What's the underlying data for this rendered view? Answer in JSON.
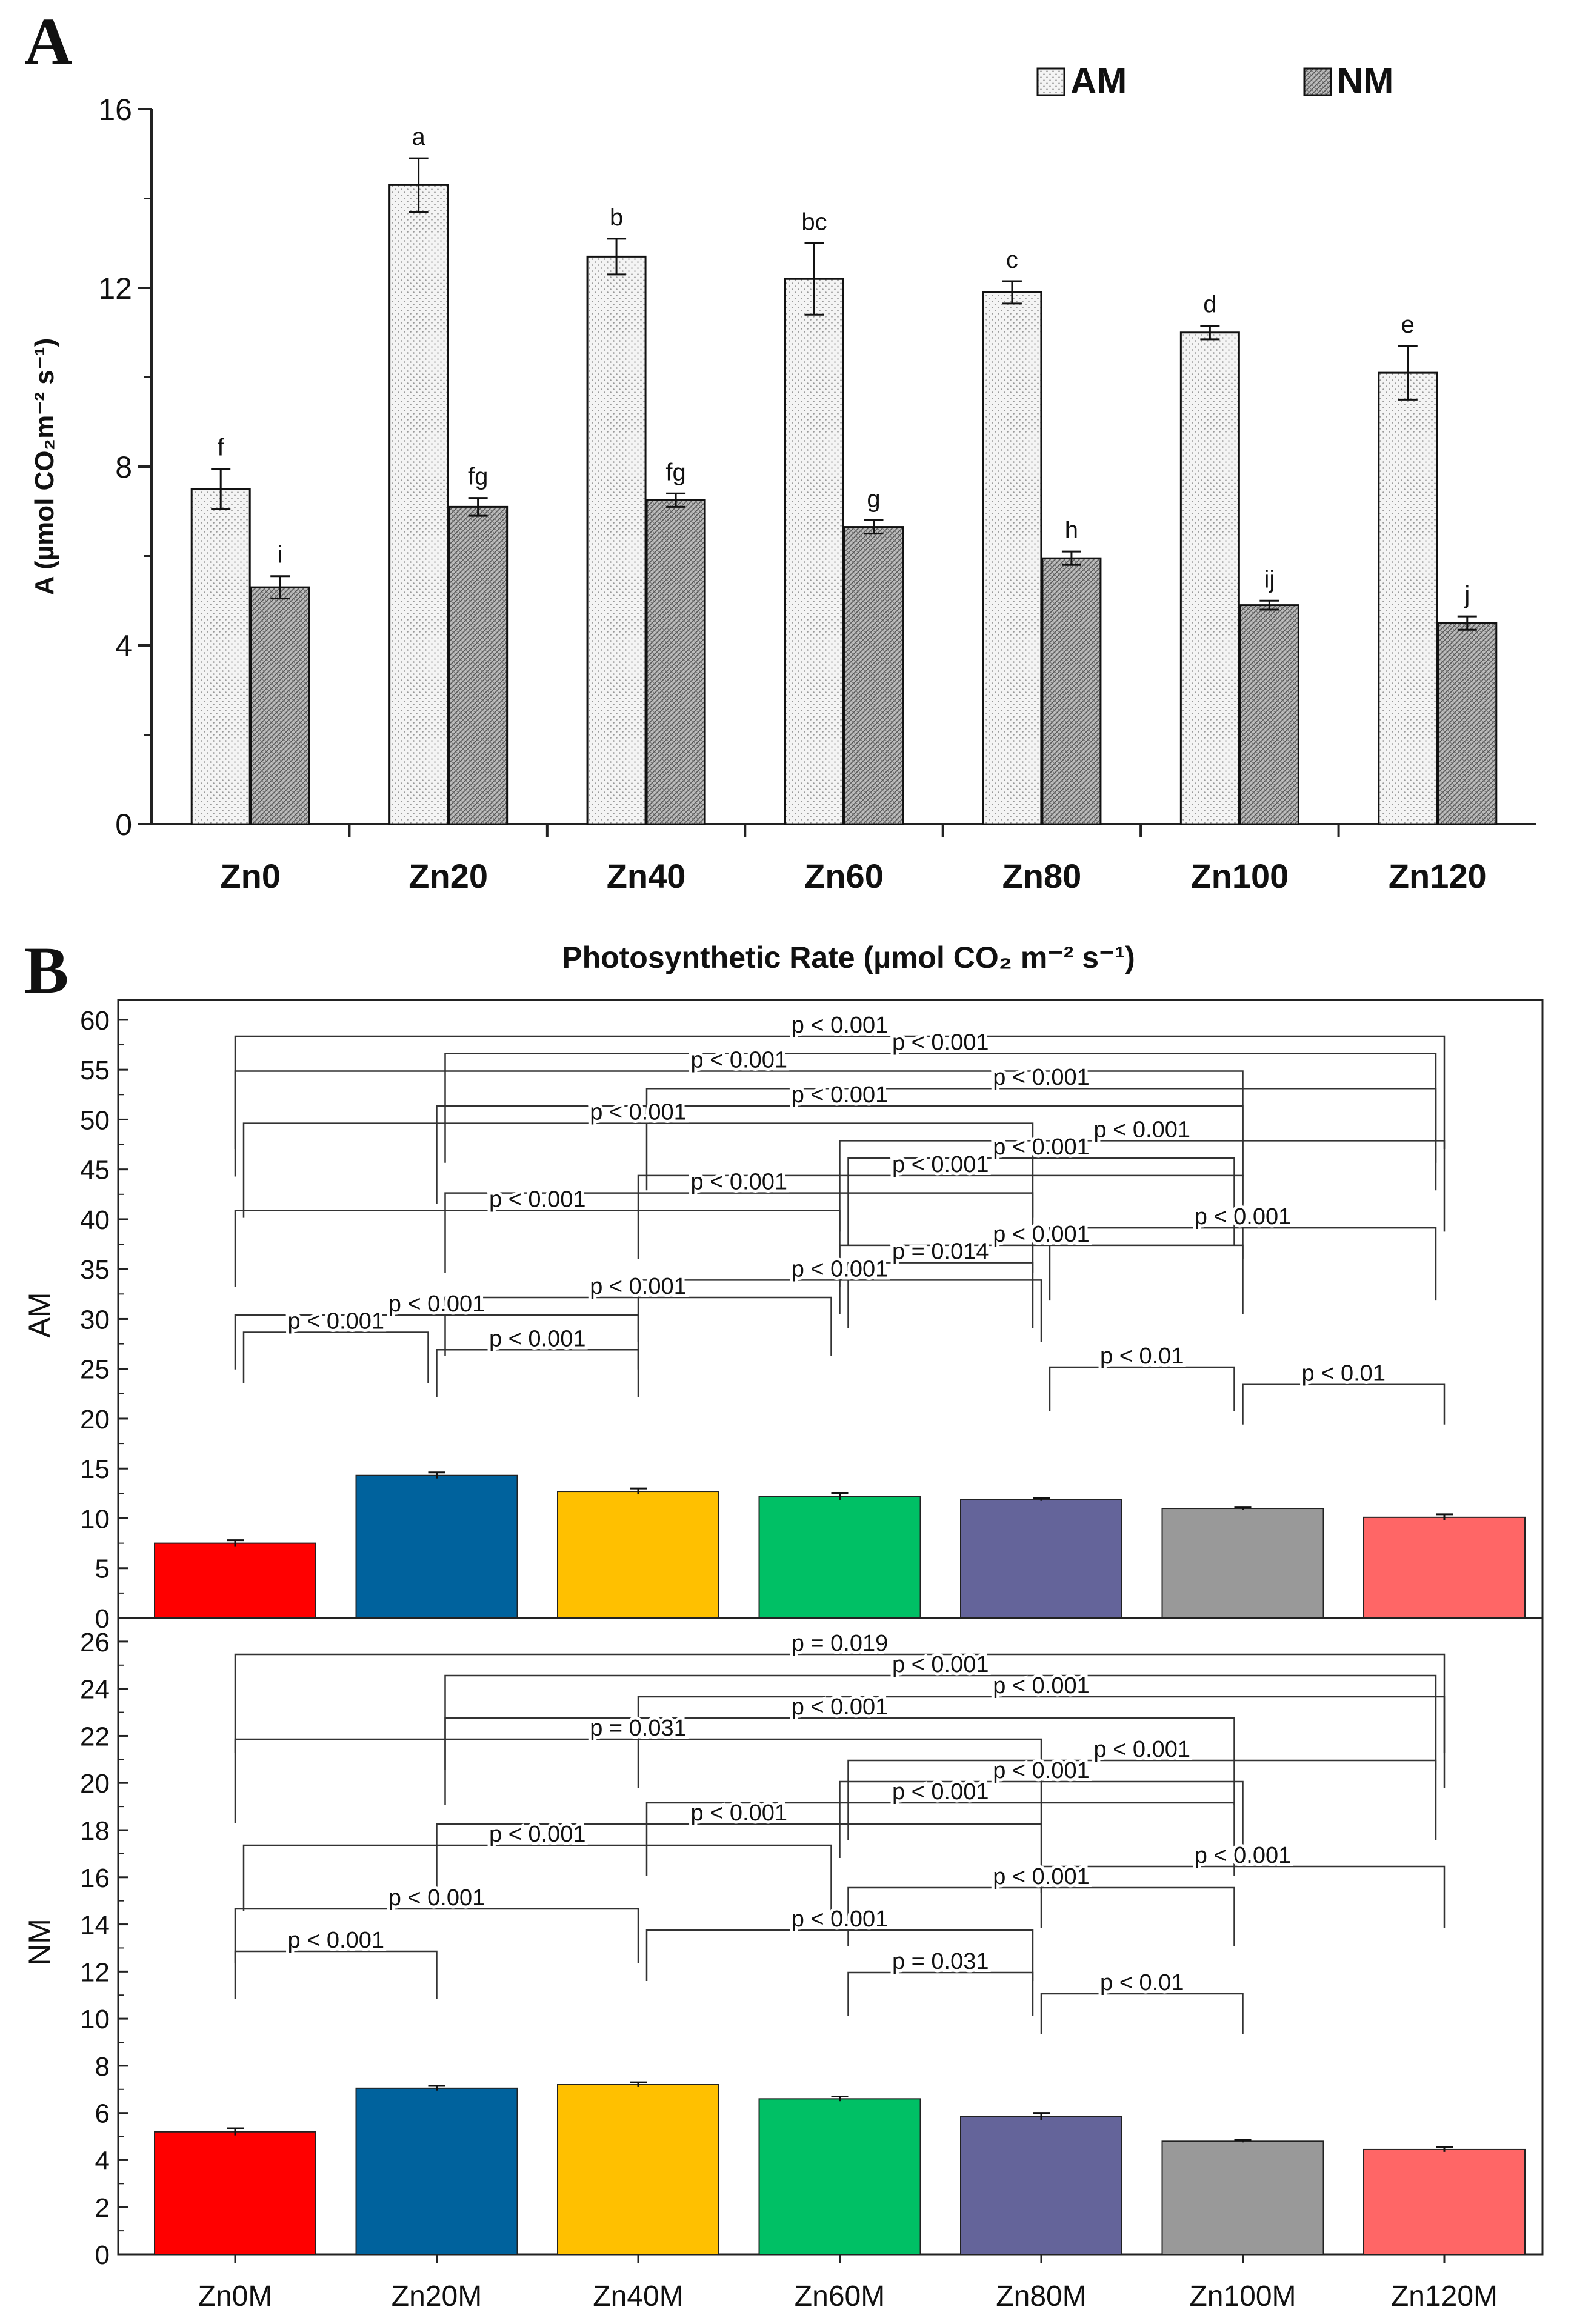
{
  "chart_data": [
    {
      "type": "bar",
      "panel": "A",
      "title": "",
      "ylabel": "A (µmol CO₂m⁻² s⁻¹)",
      "xlabel": "",
      "ylim": [
        0,
        16
      ],
      "yticks": [
        0,
        4,
        8,
        12,
        16
      ],
      "categories": [
        "Zn0",
        "Zn20",
        "Zn40",
        "Zn60",
        "Zn80",
        "Zn100",
        "Zn120"
      ],
      "series": [
        {
          "name": "AM",
          "values": [
            7.5,
            14.3,
            12.7,
            12.2,
            11.9,
            11.0,
            10.1
          ],
          "errors": [
            0.45,
            0.6,
            0.4,
            0.8,
            0.25,
            0.15,
            0.6
          ],
          "letters": [
            "f",
            "a",
            "b",
            "bc",
            "c",
            "d",
            "e"
          ],
          "pattern": "dots"
        },
        {
          "name": "NM",
          "values": [
            5.3,
            7.1,
            7.25,
            6.65,
            5.95,
            4.9,
            4.5
          ],
          "errors": [
            0.25,
            0.2,
            0.15,
            0.15,
            0.15,
            0.1,
            0.15
          ],
          "letters": [
            "i",
            "fg",
            "fg",
            "g",
            "h",
            "ij",
            "j"
          ],
          "pattern": "hatch"
        }
      ],
      "legend": {
        "position": "top-right",
        "entries": [
          "AM",
          "NM"
        ]
      }
    },
    {
      "type": "bar",
      "panel": "B",
      "title": "Photosynthetic Rate (µmol CO₂ m⁻² s⁻¹)",
      "categories": [
        "Zn0M",
        "Zn20M",
        "Zn40M",
        "Zn60M",
        "Zn80M",
        "Zn100M",
        "Zn120M"
      ],
      "colors": [
        "#ff0000",
        "#00629d",
        "#ffc000",
        "#00c065",
        "#64649a",
        "#999999",
        "#ff6666"
      ],
      "subplots": [
        {
          "ylabel": "AM",
          "ylim": [
            0,
            62
          ],
          "yticks": [
            0,
            5,
            10,
            15,
            20,
            25,
            30,
            35,
            40,
            45,
            50,
            55,
            60
          ],
          "values": [
            7.5,
            14.3,
            12.7,
            12.2,
            11.9,
            11.0,
            10.1
          ],
          "errors": [
            0.3,
            0.3,
            0.3,
            0.35,
            0.15,
            0.15,
            0.3
          ],
          "comparisons": [
            {
              "i": 0,
              "j": 6,
              "label": "p < 0.001"
            },
            {
              "i": 1,
              "j": 6,
              "label": "p < 0.001"
            },
            {
              "i": 0,
              "j": 5,
              "label": "p < 0.001"
            },
            {
              "i": 2,
              "j": 6,
              "label": "p < 0.001"
            },
            {
              "i": 1,
              "j": 5,
              "label": "p < 0.001"
            },
            {
              "i": 0,
              "j": 4,
              "label": "p < 0.001"
            },
            {
              "i": 3,
              "j": 6,
              "label": "p < 0.001"
            },
            {
              "i": 3,
              "j": 5,
              "label": "p < 0.001"
            },
            {
              "i": 2,
              "j": 5,
              "label": "p < 0.001"
            },
            {
              "i": 1,
              "j": 4,
              "label": "p < 0.001"
            },
            {
              "i": 0,
              "j": 3,
              "label": "p < 0.001"
            },
            {
              "i": 4,
              "j": 6,
              "label": "p < 0.001"
            },
            {
              "i": 3,
              "j": 5,
              "label": "p < 0.001"
            },
            {
              "i": 3,
              "j": 4,
              "label": "p = 0.014"
            },
            {
              "i": 2,
              "j": 4,
              "label": "p < 0.001"
            },
            {
              "i": 1,
              "j": 3,
              "label": "p < 0.001"
            },
            {
              "i": 0,
              "j": 2,
              "label": "p < 0.001"
            },
            {
              "i": 0,
              "j": 1,
              "label": "p < 0.001"
            },
            {
              "i": 1,
              "j": 2,
              "label": "p < 0.001"
            },
            {
              "i": 4,
              "j": 5,
              "label": "p < 0.01"
            },
            {
              "i": 5,
              "j": 6,
              "label": "p < 0.01"
            }
          ]
        },
        {
          "ylabel": "NM",
          "ylim": [
            0,
            27
          ],
          "yticks": [
            0,
            2,
            4,
            6,
            8,
            10,
            12,
            14,
            16,
            18,
            20,
            22,
            24,
            26
          ],
          "values": [
            5.2,
            7.05,
            7.2,
            6.6,
            5.85,
            4.8,
            4.45
          ],
          "errors": [
            0.15,
            0.1,
            0.1,
            0.1,
            0.15,
            0.05,
            0.1
          ],
          "comparisons": [
            {
              "i": 0,
              "j": 6,
              "label": "p = 0.019"
            },
            {
              "i": 1,
              "j": 6,
              "label": "p < 0.001"
            },
            {
              "i": 2,
              "j": 6,
              "label": "p < 0.001"
            },
            {
              "i": 1,
              "j": 5,
              "label": "p < 0.001"
            },
            {
              "i": 0,
              "j": 4,
              "label": "p = 0.031"
            },
            {
              "i": 3,
              "j": 6,
              "label": "p < 0.001"
            },
            {
              "i": 3,
              "j": 5,
              "label": "p < 0.001"
            },
            {
              "i": 2,
              "j": 5,
              "label": "p < 0.001"
            },
            {
              "i": 1,
              "j": 4,
              "label": "p < 0.001"
            },
            {
              "i": 0,
              "j": 3,
              "label": "p < 0.001"
            },
            {
              "i": 4,
              "j": 6,
              "label": "p < 0.001"
            },
            {
              "i": 3,
              "j": 5,
              "label": "p < 0.001"
            },
            {
              "i": 0,
              "j": 2,
              "label": "p < 0.001"
            },
            {
              "i": 2,
              "j": 4,
              "label": "p < 0.001"
            },
            {
              "i": 0,
              "j": 1,
              "label": "p < 0.001"
            },
            {
              "i": 3,
              "j": 4,
              "label": "p = 0.031"
            },
            {
              "i": 4,
              "j": 5,
              "label": "p < 0.01"
            }
          ]
        }
      ]
    }
  ]
}
